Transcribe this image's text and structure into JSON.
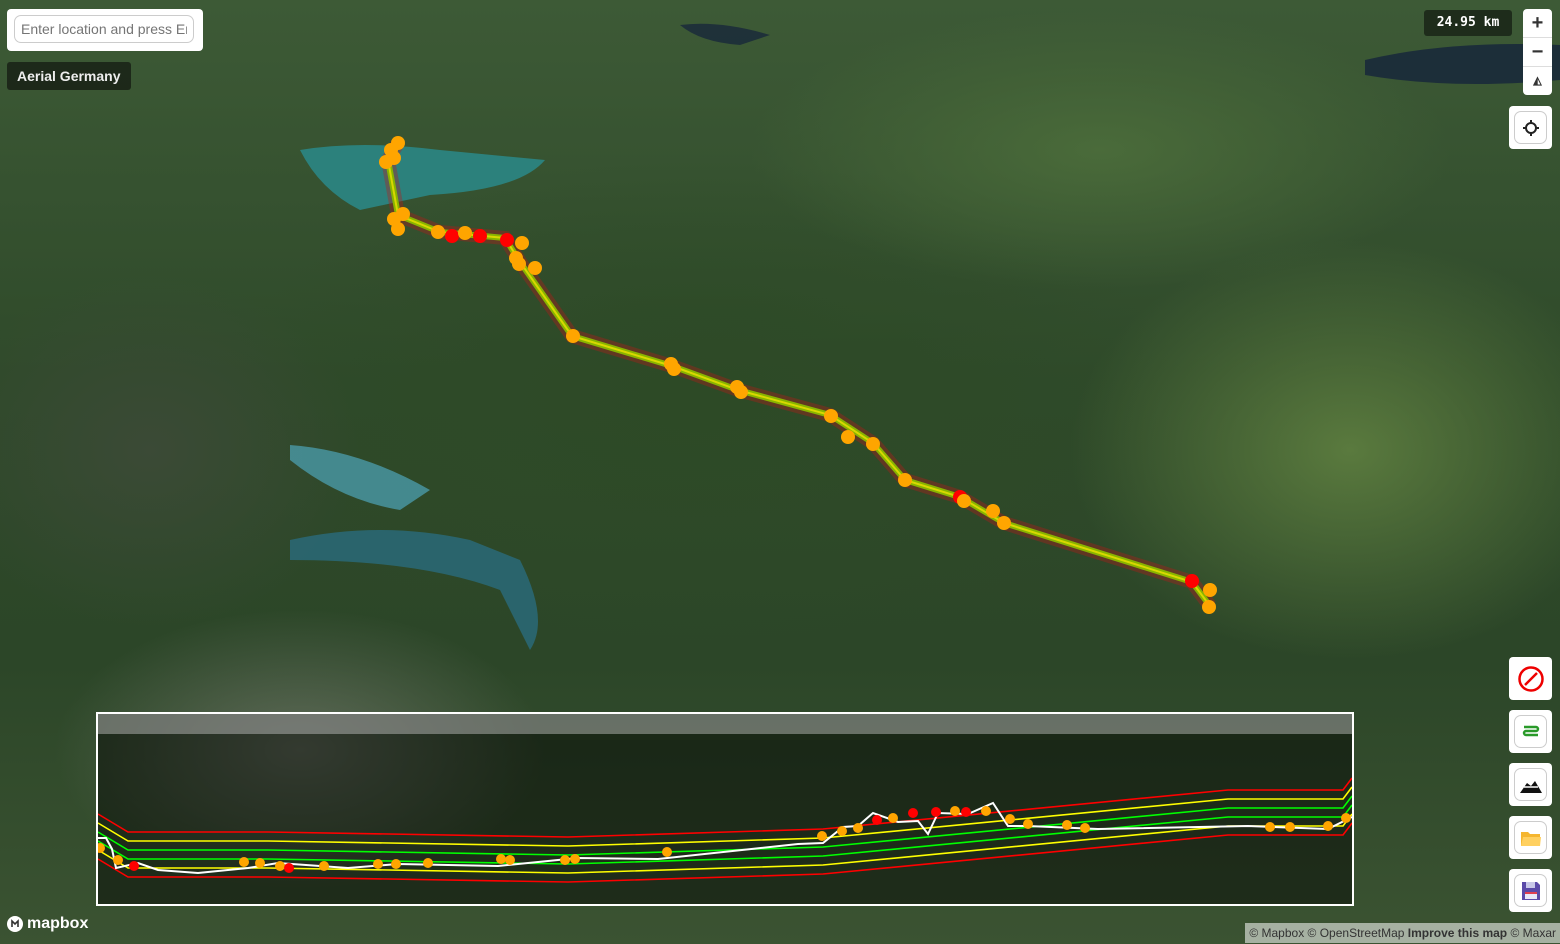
{
  "search": {
    "placeholder": "Enter location and press Enter"
  },
  "map_style": {
    "label": "Aerial Germany"
  },
  "scale": {
    "label": "24.95 km"
  },
  "zoom_controls": {
    "zoom_in": "+",
    "zoom_out": "−",
    "compass": "◭"
  },
  "side_buttons": [
    {
      "name": "clear-button",
      "icon": "no-entry-icon"
    },
    {
      "name": "layers-button",
      "icon": "route-list-icon"
    },
    {
      "name": "terrain-button",
      "icon": "mountain-icon"
    },
    {
      "name": "open-button",
      "icon": "folder-icon"
    },
    {
      "name": "save-button",
      "icon": "floppy-disk-icon"
    }
  ],
  "colors": {
    "waypoint": "#ffa500",
    "waypoint_alert": "#ff0000",
    "band_outer": "#ff0000",
    "band_mid": "#ffff00",
    "band_inner": "#00ff00",
    "profile_terrain": "#ffffff"
  },
  "logo": {
    "text": "mapbox"
  },
  "attribution": {
    "mapbox": "© Mapbox",
    "osm": "© OpenStreetMap",
    "improve": "Improve this map",
    "maxar": "© Maxar"
  }
}
